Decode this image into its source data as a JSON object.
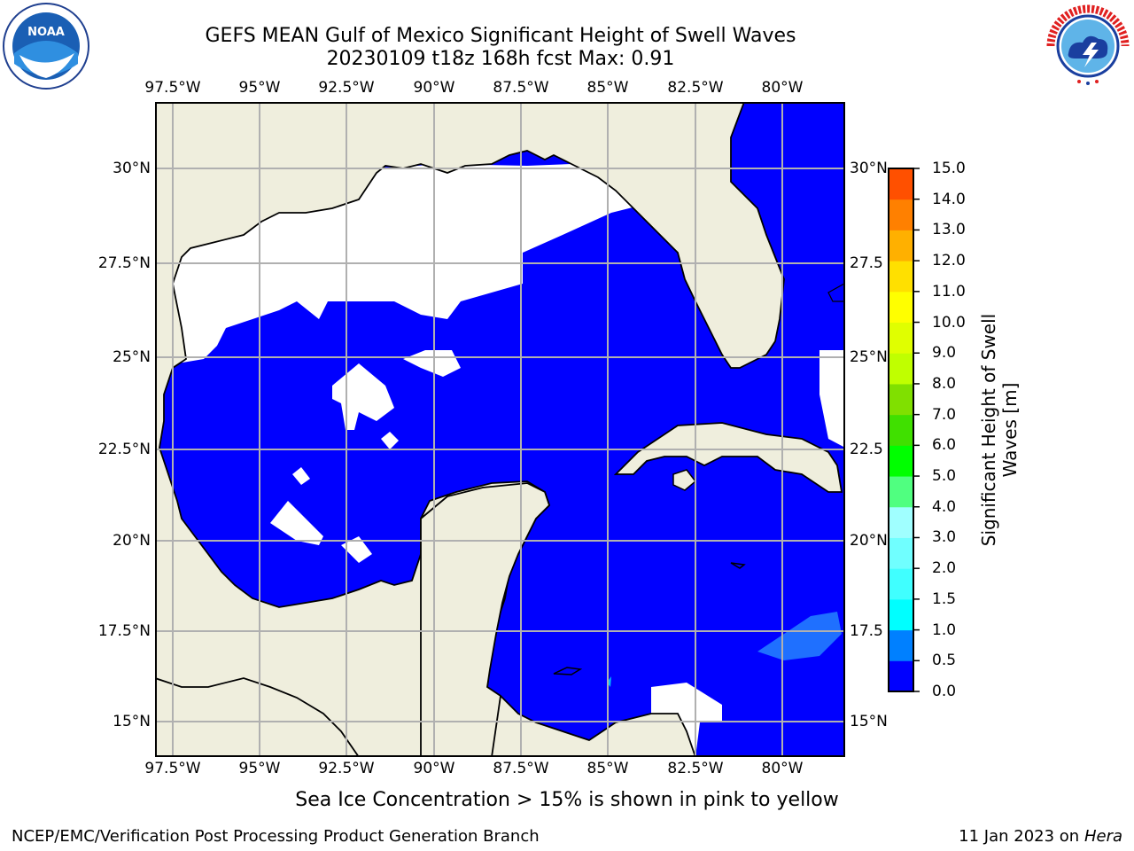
{
  "title": {
    "line1": "GEFS MEAN Gulf of Mexico Significant Height of Swell Waves",
    "line2": "20230109 t18z 168h fcst   Max: 0.91"
  },
  "logos": {
    "left": {
      "name": "noaa-logo",
      "text": "NOAA",
      "ring_text": "NATIONAL OCEANIC AND ATMOSPHERIC ADMINISTRATION · U.S. DEPARTMENT OF COMMERCE"
    },
    "right": {
      "name": "nws-logo",
      "ring_text": "NATIONAL WEATHER SERVICE"
    }
  },
  "map": {
    "lon_labels": [
      "97.5°W",
      "95°W",
      "92.5°W",
      "90°W",
      "87.5°W",
      "85°W",
      "82.5°W",
      "80°W"
    ],
    "lat_labels_left": [
      "30°N",
      "27.5°N",
      "25°N",
      "22.5°N",
      "20°N",
      "17.5°N",
      "15°N"
    ],
    "lat_labels_right": [
      "30°N",
      "27.5",
      "25°N",
      "22.5",
      "20°N",
      "17.5",
      "15°N"
    ],
    "colors": {
      "land": "#efeedd",
      "water_low": "#0000ff",
      "water_mid": "#0080ff",
      "grid": "#b0b0b0",
      "no_data": "#ffffff"
    }
  },
  "colorbar": {
    "title": "Significant Height of Swell Waves [m]",
    "ticks": [
      "0.0",
      "0.5",
      "1.0",
      "1.5",
      "2.0",
      "3.0",
      "4.0",
      "5.0",
      "6.0",
      "7.0",
      "8.0",
      "9.0",
      "10.0",
      "11.0",
      "12.0",
      "13.0",
      "14.0",
      "15.0"
    ],
    "colors": [
      "#0000ff",
      "#0080ff",
      "#00ffff",
      "#40ffff",
      "#70ffff",
      "#a0ffff",
      "#50ff80",
      "#00ff00",
      "#40e000",
      "#80e000",
      "#c0ff00",
      "#e0ff00",
      "#ffff00",
      "#ffe000",
      "#ffb000",
      "#ff8000",
      "#ff5000",
      "#ff2000",
      "#ff0000"
    ]
  },
  "note": "Sea Ice Concentration > 15% is shown in pink to yellow",
  "footer": {
    "left": "NCEP/EMC/Verification Post Processing Product Generation Branch",
    "right_date": "11 Jan 2023 on ",
    "right_host": "Hera"
  }
}
